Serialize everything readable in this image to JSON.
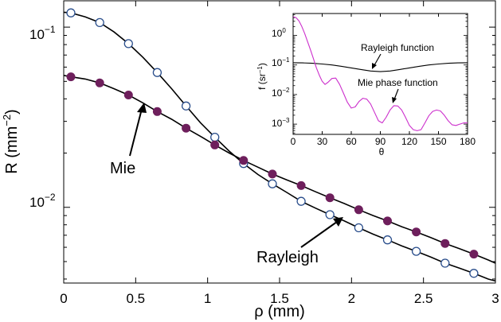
{
  "chart_data": [
    {
      "id": "main",
      "type": "line",
      "xlabel": "ρ (mm)",
      "ylabel_main": "R (mm",
      "ylabel_exp": "−2",
      "ylabel_close": ")",
      "xlim": [
        0,
        3
      ],
      "ylim": [
        0.0038,
        0.14
      ],
      "yscale": "log",
      "xticks": [
        0,
        0.5,
        1,
        1.5,
        2,
        2.5,
        3
      ],
      "xtick_labels": [
        "0",
        "0.5",
        "1",
        "1.5",
        "2",
        "2.5",
        "3"
      ],
      "yticks": [
        {
          "value": 0.1,
          "base": "10",
          "exp": "−1"
        },
        {
          "value": 0.01,
          "base": "10",
          "exp": "−2"
        }
      ],
      "series": [
        {
          "name": "Rayleigh",
          "marker": "open-circle",
          "curve": {
            "x": [
              0,
              0.05,
              0.15,
              0.25,
              0.35,
              0.45,
              0.55,
              0.65,
              0.75,
              0.85,
              0.95,
              1.05,
              1.15,
              1.25,
              1.35,
              1.45,
              1.55,
              1.65,
              1.75,
              1.85,
              1.95,
              2.05,
              2.15,
              2.25,
              2.35,
              2.45,
              2.55,
              2.65,
              2.75,
              2.85,
              2.95,
              3.0
            ],
            "y": [
              0.121,
              0.12,
              0.114,
              0.106,
              0.094,
              0.081,
              0.068,
              0.056,
              0.0455,
              0.0365,
              0.0295,
              0.0245,
              0.0205,
              0.0175,
              0.0152,
              0.0135,
              0.0121,
              0.0108,
              0.0099,
              0.0091,
              0.0084,
              0.0077,
              0.0071,
              0.0066,
              0.0061,
              0.0057,
              0.0053,
              0.0049,
              0.0046,
              0.0043,
              0.004,
              0.0039
            ]
          },
          "points": {
            "x": [
              0.05,
              0.25,
              0.45,
              0.65,
              0.85,
              1.05,
              1.25,
              1.45,
              1.65,
              1.85,
              2.05,
              2.25,
              2.45,
              2.65,
              2.85
            ],
            "y": [
              0.12,
              0.106,
              0.081,
              0.056,
              0.0365,
              0.0245,
              0.0175,
              0.0135,
              0.0108,
              0.0091,
              0.0077,
              0.0066,
              0.0057,
              0.0049,
              0.0043
            ]
          }
        },
        {
          "name": "Mie",
          "marker": "filled-circle",
          "curve": {
            "x": [
              0,
              0.05,
              0.15,
              0.25,
              0.35,
              0.45,
              0.55,
              0.65,
              0.75,
              0.85,
              0.95,
              1.05,
              1.15,
              1.25,
              1.35,
              1.45,
              1.55,
              1.65,
              1.75,
              1.85,
              1.95,
              2.05,
              2.15,
              2.25,
              2.35,
              2.45,
              2.55,
              2.65,
              2.75,
              2.85,
              2.95,
              3.0
            ],
            "y": [
              0.054,
              0.053,
              0.0515,
              0.049,
              0.0455,
              0.042,
              0.038,
              0.034,
              0.0308,
              0.0275,
              0.0248,
              0.0222,
              0.02,
              0.0182,
              0.0167,
              0.0153,
              0.0142,
              0.0132,
              0.0122,
              0.0113,
              0.0105,
              0.0097,
              0.009,
              0.0084,
              0.0078,
              0.0073,
              0.0068,
              0.0063,
              0.0059,
              0.0055,
              0.0051,
              0.0049
            ]
          },
          "points": {
            "x": [
              0.05,
              0.25,
              0.45,
              0.65,
              0.85,
              1.05,
              1.25,
              1.45,
              1.65,
              1.85,
              2.05,
              2.25,
              2.45,
              2.65,
              2.85
            ],
            "y": [
              0.053,
              0.049,
              0.042,
              0.034,
              0.0275,
              0.0222,
              0.0182,
              0.0153,
              0.0132,
              0.0113,
              0.0097,
              0.0084,
              0.0073,
              0.0063,
              0.0055
            ]
          }
        }
      ],
      "annotations": [
        {
          "text": "Mie",
          "target_x": 0.6,
          "target_y": 0.036
        },
        {
          "text": "Rayleigh",
          "target_x": 1.97,
          "target_y": 0.0079
        }
      ]
    },
    {
      "id": "inset",
      "type": "line",
      "xlabel": "θ",
      "ylabel_main": "f (sr",
      "ylabel_exp": "−1",
      "ylabel_close": ")",
      "xlim": [
        0,
        180
      ],
      "ylim": [
        0.00045,
        5.5
      ],
      "yscale": "log",
      "xticks": [
        0,
        30,
        60,
        90,
        120,
        150,
        180
      ],
      "xtick_labels": [
        "0",
        "30",
        "60",
        "90",
        "120",
        "150",
        "180"
      ],
      "yticks": [
        {
          "value": 1,
          "base": "10",
          "exp": "0"
        },
        {
          "value": 0.1,
          "base": "10",
          "exp": "−1"
        },
        {
          "value": 0.01,
          "base": "10",
          "exp": "−2"
        },
        {
          "value": 0.001,
          "base": "10",
          "exp": "−3"
        }
      ],
      "series": [
        {
          "name": "Rayleigh function",
          "color": "#000000",
          "x": [
            0,
            10,
            20,
            30,
            40,
            50,
            60,
            70,
            80,
            90,
            100,
            110,
            120,
            130,
            140,
            150,
            160,
            170,
            180
          ],
          "y": [
            0.119,
            0.118,
            0.114,
            0.108,
            0.1,
            0.09,
            0.0795,
            0.0705,
            0.0625,
            0.0597,
            0.0625,
            0.0705,
            0.0795,
            0.09,
            0.1,
            0.108,
            0.114,
            0.118,
            0.119
          ]
        },
        {
          "name": "Mie phase function",
          "color": "#cc2fcc",
          "x": [
            0,
            3,
            6,
            9,
            12,
            15,
            18,
            21,
            24,
            27,
            30,
            33,
            36,
            40,
            44,
            48,
            52,
            56,
            60,
            64,
            68,
            72,
            76,
            80,
            84,
            88,
            92,
            96,
            100,
            104,
            108,
            112,
            116,
            120,
            124,
            128,
            132,
            136,
            140,
            144,
            148,
            152,
            156,
            160,
            164,
            168,
            172,
            176,
            180
          ],
          "y": [
            4.3,
            4.0,
            3.1,
            2.0,
            1.15,
            0.6,
            0.32,
            0.16,
            0.08,
            0.045,
            0.028,
            0.022,
            0.026,
            0.035,
            0.036,
            0.022,
            0.011,
            0.0055,
            0.0035,
            0.0038,
            0.0058,
            0.0075,
            0.007,
            0.0048,
            0.0025,
            0.0013,
            0.0011,
            0.0017,
            0.003,
            0.0042,
            0.0041,
            0.003,
            0.0017,
            0.0009,
            0.00065,
            0.0006,
            0.00065,
            0.0011,
            0.0019,
            0.0027,
            0.003,
            0.0028,
            0.002,
            0.0013,
            0.00095,
            0.0009,
            0.001,
            0.0011,
            0.0011
          ]
        }
      ],
      "annotations": [
        {
          "text": "Rayleigh function",
          "target_x": 93,
          "target_y": 0.066
        },
        {
          "text": "Mie phase function",
          "target_x": 107,
          "target_y": 0.0047
        }
      ]
    }
  ]
}
